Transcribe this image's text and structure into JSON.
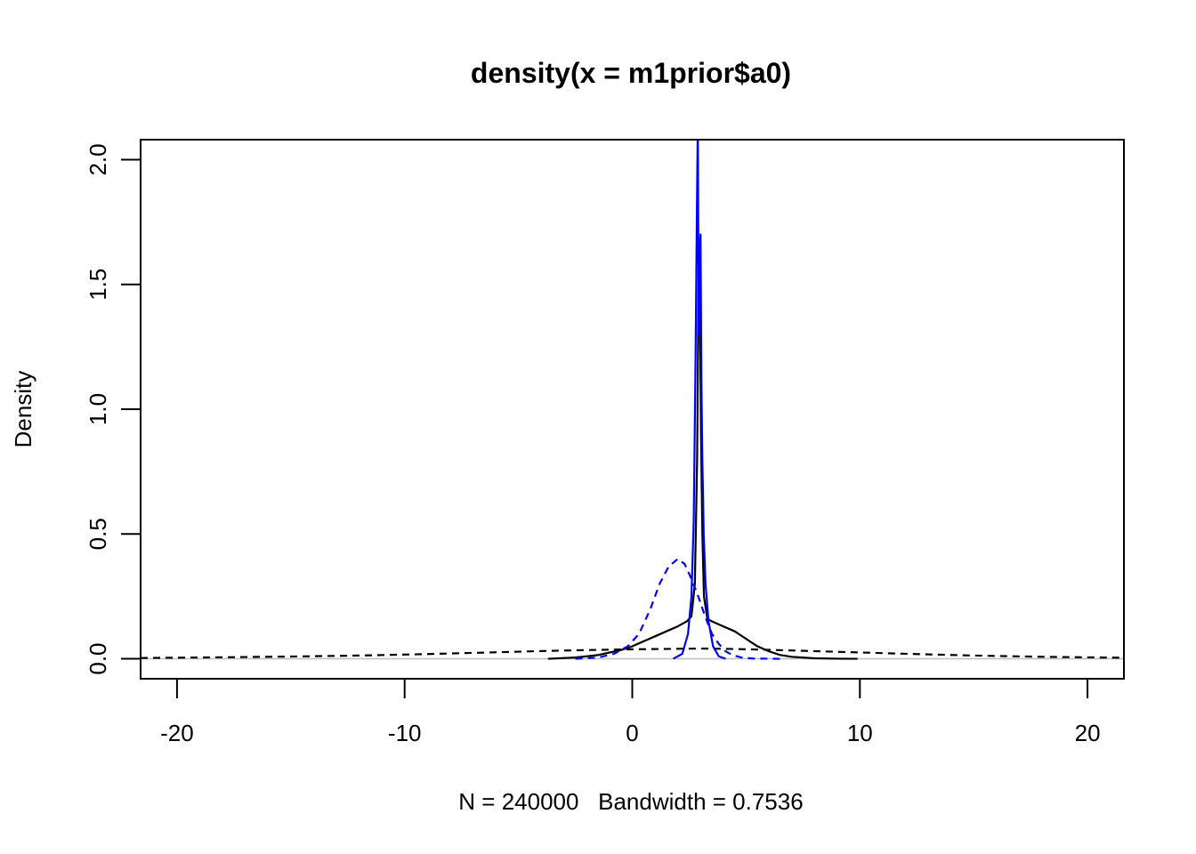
{
  "chart_data": {
    "type": "line",
    "title": "density(x = m1prior$a0)",
    "xlabel": "N = 240000   Bandwidth = 0.7536",
    "ylabel": "Density",
    "xlim": [
      -21.6,
      21.6
    ],
    "ylim": [
      -0.08,
      2.08
    ],
    "xticks": [
      -20,
      -10,
      0,
      10,
      20
    ],
    "yticks": [
      0.0,
      0.5,
      1.0,
      1.5,
      2.0
    ],
    "ytick_labels": [
      "0.0",
      "0.5",
      "1.0",
      "1.5",
      "2.0"
    ],
    "grid": false,
    "baseline": {
      "y": 0,
      "color": "#bebebe"
    },
    "series": [
      {
        "color": "#000000",
        "dash": "dashed",
        "x": [
          -21.6,
          -18,
          -15,
          -12,
          -9,
          -6,
          -4,
          -2,
          0,
          2,
          3,
          4,
          6,
          9,
          12,
          15,
          18,
          21.6
        ],
        "y": [
          0.003,
          0.006,
          0.009,
          0.013,
          0.019,
          0.026,
          0.031,
          0.035,
          0.038,
          0.04,
          0.041,
          0.04,
          0.036,
          0.028,
          0.02,
          0.013,
          0.008,
          0.004
        ]
      },
      {
        "color": "#000000",
        "dash": "solid",
        "x": [
          -3.7,
          -2.5,
          -1.5,
          -0.5,
          0,
          0.5,
          1,
          1.5,
          2,
          2.4,
          2.6,
          2.75,
          2.85,
          2.92,
          2.97,
          3.02,
          3.08,
          3.15,
          3.3,
          3.5,
          4,
          4.5,
          5,
          5.5,
          6,
          6.5,
          7,
          8,
          9,
          9.9
        ],
        "y": [
          0.0,
          0.005,
          0.015,
          0.035,
          0.05,
          0.07,
          0.09,
          0.11,
          0.13,
          0.15,
          0.17,
          0.3,
          0.8,
          1.6,
          1.45,
          0.9,
          0.5,
          0.25,
          0.16,
          0.15,
          0.13,
          0.11,
          0.08,
          0.05,
          0.03,
          0.015,
          0.008,
          0.002,
          0.0005,
          0.0
        ]
      },
      {
        "color": "#0000ff",
        "dash": "dashed",
        "x": [
          -2.5,
          -1.5,
          -0.8,
          -0.2,
          0.3,
          0.8,
          1.2,
          1.6,
          2.0,
          2.3,
          2.6,
          2.9,
          3.2,
          3.5,
          3.8,
          4.1,
          4.4,
          4.8,
          5.3,
          6.5
        ],
        "y": [
          0.0,
          0.005,
          0.02,
          0.05,
          0.1,
          0.2,
          0.3,
          0.37,
          0.4,
          0.38,
          0.32,
          0.25,
          0.17,
          0.1,
          0.06,
          0.03,
          0.015,
          0.005,
          0.001,
          0.0
        ]
      },
      {
        "color": "#0000ff",
        "dash": "solid",
        "x": [
          1.8,
          2.2,
          2.45,
          2.6,
          2.7,
          2.78,
          2.84,
          2.88,
          2.92,
          2.96,
          3.0,
          3.04,
          3.08,
          3.14,
          3.22,
          3.35,
          3.55,
          3.8,
          4.1
        ],
        "y": [
          0.0,
          0.02,
          0.1,
          0.25,
          0.55,
          1.2,
          1.8,
          2.15,
          1.3,
          1.6,
          1.7,
          1.1,
          0.8,
          0.5,
          0.3,
          0.15,
          0.05,
          0.01,
          0.0
        ]
      }
    ]
  }
}
